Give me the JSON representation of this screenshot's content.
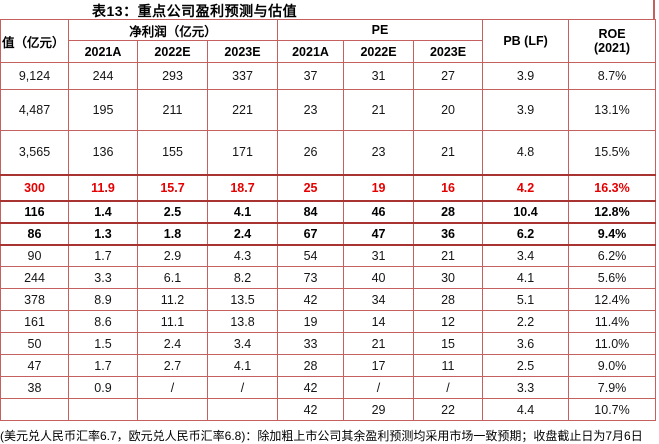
{
  "title": "表13：重点公司盈利预测与估值",
  "table": {
    "headers": {
      "market_cap": "值（亿元）",
      "net_profit_group": "净利润（亿元）",
      "pe_group": "PE",
      "pb": "PB (LF)",
      "roe_line1": "ROE",
      "roe_line2": "(2021)",
      "sub": [
        "2021A",
        "2022E",
        "2023E",
        "2021A",
        "2022E",
        "2023E"
      ]
    },
    "rows": [
      {
        "style": "normal",
        "cells": [
          "9,124",
          "244",
          "293",
          "337",
          "37",
          "31",
          "27",
          "3.9",
          "8.7%"
        ]
      },
      {
        "style": "normal",
        "cells": [
          "4,487",
          "195",
          "211",
          "221",
          "23",
          "21",
          "20",
          "3.9",
          "13.1%"
        ]
      },
      {
        "style": "normal",
        "cells": [
          "3,565",
          "136",
          "155",
          "171",
          "26",
          "23",
          "21",
          "4.8",
          "15.5%"
        ]
      },
      {
        "style": "red-bold",
        "cells": [
          "300",
          "11.9",
          "15.7",
          "18.7",
          "25",
          "19",
          "16",
          "4.2",
          "16.3%"
        ]
      },
      {
        "style": "bold",
        "cells": [
          "116",
          "1.4",
          "2.5",
          "4.1",
          "84",
          "46",
          "28",
          "10.4",
          "12.8%"
        ]
      },
      {
        "style": "bold",
        "cells": [
          "86",
          "1.3",
          "1.8",
          "2.4",
          "67",
          "47",
          "36",
          "6.2",
          "9.4%"
        ]
      },
      {
        "style": "normal",
        "cells": [
          "90",
          "1.7",
          "2.9",
          "4.3",
          "54",
          "31",
          "21",
          "3.4",
          "6.2%"
        ]
      },
      {
        "style": "normal",
        "cells": [
          "244",
          "3.3",
          "6.1",
          "8.2",
          "73",
          "40",
          "30",
          "4.1",
          "5.6%"
        ]
      },
      {
        "style": "normal",
        "cells": [
          "378",
          "8.9",
          "11.2",
          "13.5",
          "42",
          "34",
          "28",
          "5.1",
          "12.4%"
        ]
      },
      {
        "style": "normal",
        "cells": [
          "161",
          "8.6",
          "11.1",
          "13.8",
          "19",
          "14",
          "12",
          "2.2",
          "11.4%"
        ]
      },
      {
        "style": "normal",
        "cells": [
          "50",
          "1.5",
          "2.4",
          "3.4",
          "33",
          "21",
          "15",
          "3.6",
          "11.0%"
        ]
      },
      {
        "style": "normal",
        "cells": [
          "47",
          "1.7",
          "2.7",
          "4.1",
          "28",
          "17",
          "11",
          "2.5",
          "9.0%"
        ]
      },
      {
        "style": "normal",
        "cells": [
          "38",
          "0.9",
          "/",
          "/",
          "42",
          "/",
          "/",
          "3.3",
          "7.9%"
        ]
      },
      {
        "style": "normal",
        "cells": [
          "",
          "",
          "",
          "",
          "42",
          "29",
          "22",
          "4.4",
          "10.7%"
        ]
      }
    ]
  },
  "footnote": "(美元兑人民币汇率6.7，欧元兑人民币汇率6.8)：除加粗上市公司其余盈利预测均采用市场一致预期；收盘截止日为7月6日",
  "colors": {
    "border": "#c4615e",
    "border_strong": "#a93330",
    "highlight_text": "#e50000"
  }
}
